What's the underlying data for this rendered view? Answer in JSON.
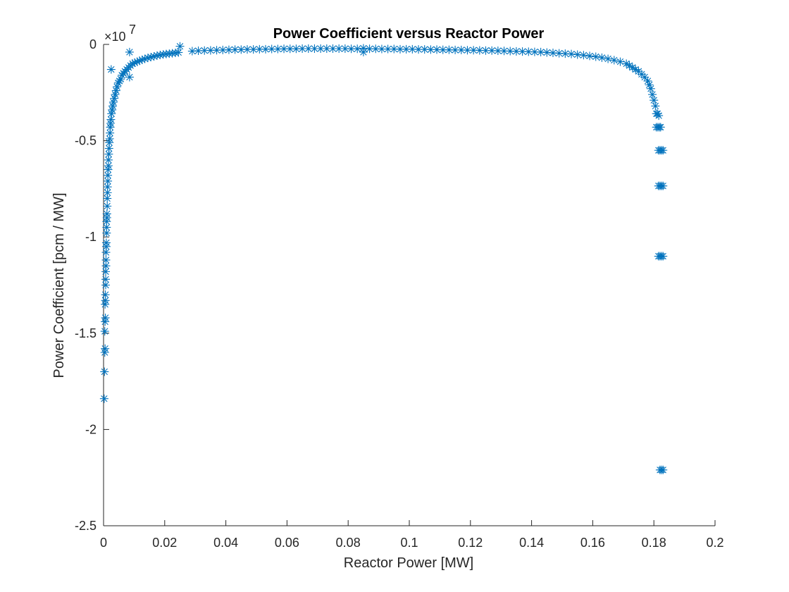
{
  "chart_data": {
    "type": "scatter",
    "title": "Power Coefficient versus Reactor Power",
    "xlabel": "Reactor Power [MW]",
    "ylabel": "Power Coefficient [pcm / MW]",
    "y_exponent": {
      "base": "×10",
      "power": "7"
    },
    "xlim": [
      0,
      0.2
    ],
    "ylim": [
      -2.5,
      0
    ],
    "y_scale_factor": 10000000,
    "x_ticks": [
      "0",
      "0.02",
      "0.04",
      "0.06",
      "0.08",
      "0.1",
      "0.12",
      "0.14",
      "0.16",
      "0.18",
      "0.2"
    ],
    "y_ticks": [
      "0",
      "-0.5",
      "-1",
      "-1.5",
      "-2",
      "-2.5"
    ],
    "x_tick_values": [
      0,
      0.02,
      0.04,
      0.06,
      0.08,
      0.1,
      0.12,
      0.14,
      0.16,
      0.18,
      0.2
    ],
    "y_tick_values": [
      0,
      -0.5,
      -1,
      -1.5,
      -2,
      -2.5
    ],
    "marker": "asterisk",
    "color": "#0072BD",
    "grid": false,
    "series": [
      {
        "points": [
          [
            0.0002,
            -1.84
          ],
          [
            0.0003,
            -1.7
          ],
          [
            0.0004,
            -1.6
          ],
          [
            0.0005,
            -1.58
          ],
          [
            0.0004,
            -1.49
          ],
          [
            0.0005,
            -1.44
          ],
          [
            0.0006,
            -1.42
          ],
          [
            0.0005,
            -1.35
          ],
          [
            0.0006,
            -1.33
          ],
          [
            0.0006,
            -1.3
          ],
          [
            0.0007,
            -1.25
          ],
          [
            0.0007,
            -1.22
          ],
          [
            0.0007,
            -1.18
          ],
          [
            0.0008,
            -1.15
          ],
          [
            0.0008,
            -1.12
          ],
          [
            0.0008,
            -1.08
          ],
          [
            0.0009,
            -1.05
          ],
          [
            0.0009,
            -1.03
          ],
          [
            0.001,
            -0.98
          ],
          [
            0.001,
            -0.95
          ],
          [
            0.001,
            -0.92
          ],
          [
            0.0011,
            -0.9
          ],
          [
            0.0011,
            -0.88
          ],
          [
            0.0012,
            -0.84
          ],
          [
            0.0012,
            -0.8
          ],
          [
            0.0013,
            -0.77
          ],
          [
            0.0013,
            -0.74
          ],
          [
            0.0014,
            -0.71
          ],
          [
            0.0014,
            -0.68
          ],
          [
            0.0015,
            -0.65
          ],
          [
            0.0016,
            -0.63
          ],
          [
            0.0016,
            -0.6
          ],
          [
            0.0017,
            -0.57
          ],
          [
            0.0018,
            -0.54
          ],
          [
            0.0019,
            -0.51
          ],
          [
            0.002,
            -0.49
          ],
          [
            0.0021,
            -0.46
          ],
          [
            0.0022,
            -0.43
          ],
          [
            0.0023,
            -0.41
          ],
          [
            0.0024,
            -0.39
          ],
          [
            0.0026,
            -0.36
          ],
          [
            0.0028,
            -0.34
          ],
          [
            0.003,
            -0.32
          ],
          [
            0.0032,
            -0.3
          ],
          [
            0.0035,
            -0.28
          ],
          [
            0.0038,
            -0.26
          ],
          [
            0.0041,
            -0.24
          ],
          [
            0.0044,
            -0.22
          ],
          [
            0.0048,
            -0.2
          ],
          [
            0.0052,
            -0.19
          ],
          [
            0.0056,
            -0.18
          ],
          [
            0.006,
            -0.16
          ],
          [
            0.0065,
            -0.15
          ],
          [
            0.007,
            -0.14
          ],
          [
            0.0076,
            -0.13
          ],
          [
            0.0082,
            -0.12
          ],
          [
            0.0088,
            -0.11
          ],
          [
            0.0095,
            -0.1
          ],
          [
            0.0102,
            -0.095
          ],
          [
            0.011,
            -0.09
          ],
          [
            0.0118,
            -0.085
          ],
          [
            0.0126,
            -0.08
          ],
          [
            0.0135,
            -0.075
          ],
          [
            0.0145,
            -0.07
          ],
          [
            0.0155,
            -0.066
          ],
          [
            0.0165,
            -0.062
          ],
          [
            0.0175,
            -0.058
          ],
          [
            0.0185,
            -0.055
          ],
          [
            0.0195,
            -0.052
          ],
          [
            0.0205,
            -0.05
          ],
          [
            0.0215,
            -0.048
          ],
          [
            0.0225,
            -0.046
          ],
          [
            0.0235,
            -0.044
          ],
          [
            0.0245,
            -0.042
          ],
          [
            0.0025,
            -0.13
          ],
          [
            0.0085,
            -0.04
          ],
          [
            0.0085,
            -0.17
          ],
          [
            0.025,
            -0.01
          ],
          [
            0.029,
            -0.035
          ],
          [
            0.031,
            -0.033
          ],
          [
            0.033,
            -0.032
          ],
          [
            0.035,
            -0.031
          ],
          [
            0.037,
            -0.03
          ],
          [
            0.039,
            -0.029
          ],
          [
            0.041,
            -0.028
          ],
          [
            0.043,
            -0.027
          ],
          [
            0.045,
            -0.027
          ],
          [
            0.047,
            -0.026
          ],
          [
            0.049,
            -0.026
          ],
          [
            0.051,
            -0.025
          ],
          [
            0.053,
            -0.025
          ],
          [
            0.055,
            -0.024
          ],
          [
            0.057,
            -0.024
          ],
          [
            0.059,
            -0.023
          ],
          [
            0.061,
            -0.023
          ],
          [
            0.063,
            -0.023
          ],
          [
            0.065,
            -0.022
          ],
          [
            0.067,
            -0.022
          ],
          [
            0.069,
            -0.022
          ],
          [
            0.071,
            -0.022
          ],
          [
            0.073,
            -0.022
          ],
          [
            0.075,
            -0.022
          ],
          [
            0.077,
            -0.022
          ],
          [
            0.079,
            -0.022
          ],
          [
            0.081,
            -0.023
          ],
          [
            0.083,
            -0.023
          ],
          [
            0.085,
            -0.04
          ],
          [
            0.085,
            -0.02
          ],
          [
            0.087,
            -0.023
          ],
          [
            0.089,
            -0.023
          ],
          [
            0.091,
            -0.024
          ],
          [
            0.093,
            -0.024
          ],
          [
            0.095,
            -0.024
          ],
          [
            0.097,
            -0.025
          ],
          [
            0.099,
            -0.025
          ],
          [
            0.101,
            -0.025
          ],
          [
            0.103,
            -0.026
          ],
          [
            0.105,
            -0.026
          ],
          [
            0.107,
            -0.027
          ],
          [
            0.109,
            -0.027
          ],
          [
            0.111,
            -0.028
          ],
          [
            0.113,
            -0.028
          ],
          [
            0.115,
            -0.029
          ],
          [
            0.117,
            -0.029
          ],
          [
            0.119,
            -0.03
          ],
          [
            0.121,
            -0.03
          ],
          [
            0.123,
            -0.031
          ],
          [
            0.125,
            -0.032
          ],
          [
            0.127,
            -0.032
          ],
          [
            0.129,
            -0.033
          ],
          [
            0.131,
            -0.034
          ],
          [
            0.133,
            -0.035
          ],
          [
            0.135,
            -0.036
          ],
          [
            0.137,
            -0.037
          ],
          [
            0.139,
            -0.038
          ],
          [
            0.141,
            -0.039
          ],
          [
            0.143,
            -0.04
          ],
          [
            0.145,
            -0.042
          ],
          [
            0.147,
            -0.044
          ],
          [
            0.149,
            -0.046
          ],
          [
            0.151,
            -0.048
          ],
          [
            0.153,
            -0.05
          ],
          [
            0.155,
            -0.053
          ],
          [
            0.157,
            -0.056
          ],
          [
            0.159,
            -0.06
          ],
          [
            0.161,
            -0.064
          ],
          [
            0.163,
            -0.069
          ],
          [
            0.165,
            -0.075
          ],
          [
            0.167,
            -0.082
          ],
          [
            0.169,
            -0.09
          ],
          [
            0.171,
            -0.1
          ],
          [
            0.172,
            -0.11
          ],
          [
            0.173,
            -0.12
          ],
          [
            0.174,
            -0.13
          ],
          [
            0.175,
            -0.14
          ],
          [
            0.176,
            -0.155
          ],
          [
            0.177,
            -0.17
          ],
          [
            0.178,
            -0.19
          ],
          [
            0.1785,
            -0.21
          ],
          [
            0.179,
            -0.23
          ],
          [
            0.1795,
            -0.26
          ],
          [
            0.18,
            -0.29
          ],
          [
            0.1805,
            -0.32
          ],
          [
            0.1808,
            -0.36
          ],
          [
            0.1812,
            -0.36
          ],
          [
            0.1816,
            -0.37
          ],
          [
            0.1808,
            -0.43
          ],
          [
            0.1813,
            -0.43
          ],
          [
            0.1818,
            -0.43
          ],
          [
            0.1822,
            -0.43
          ],
          [
            0.1815,
            -0.55
          ],
          [
            0.182,
            -0.55
          ],
          [
            0.1825,
            -0.55
          ],
          [
            0.183,
            -0.55
          ],
          [
            0.1815,
            -0.735
          ],
          [
            0.182,
            -0.735
          ],
          [
            0.1825,
            -0.735
          ],
          [
            0.183,
            -0.735
          ],
          [
            0.1815,
            -1.1
          ],
          [
            0.182,
            -1.1
          ],
          [
            0.1825,
            -1.1
          ],
          [
            0.183,
            -1.1
          ],
          [
            0.182,
            -2.21
          ],
          [
            0.1825,
            -2.21
          ],
          [
            0.183,
            -2.21
          ]
        ]
      }
    ]
  }
}
